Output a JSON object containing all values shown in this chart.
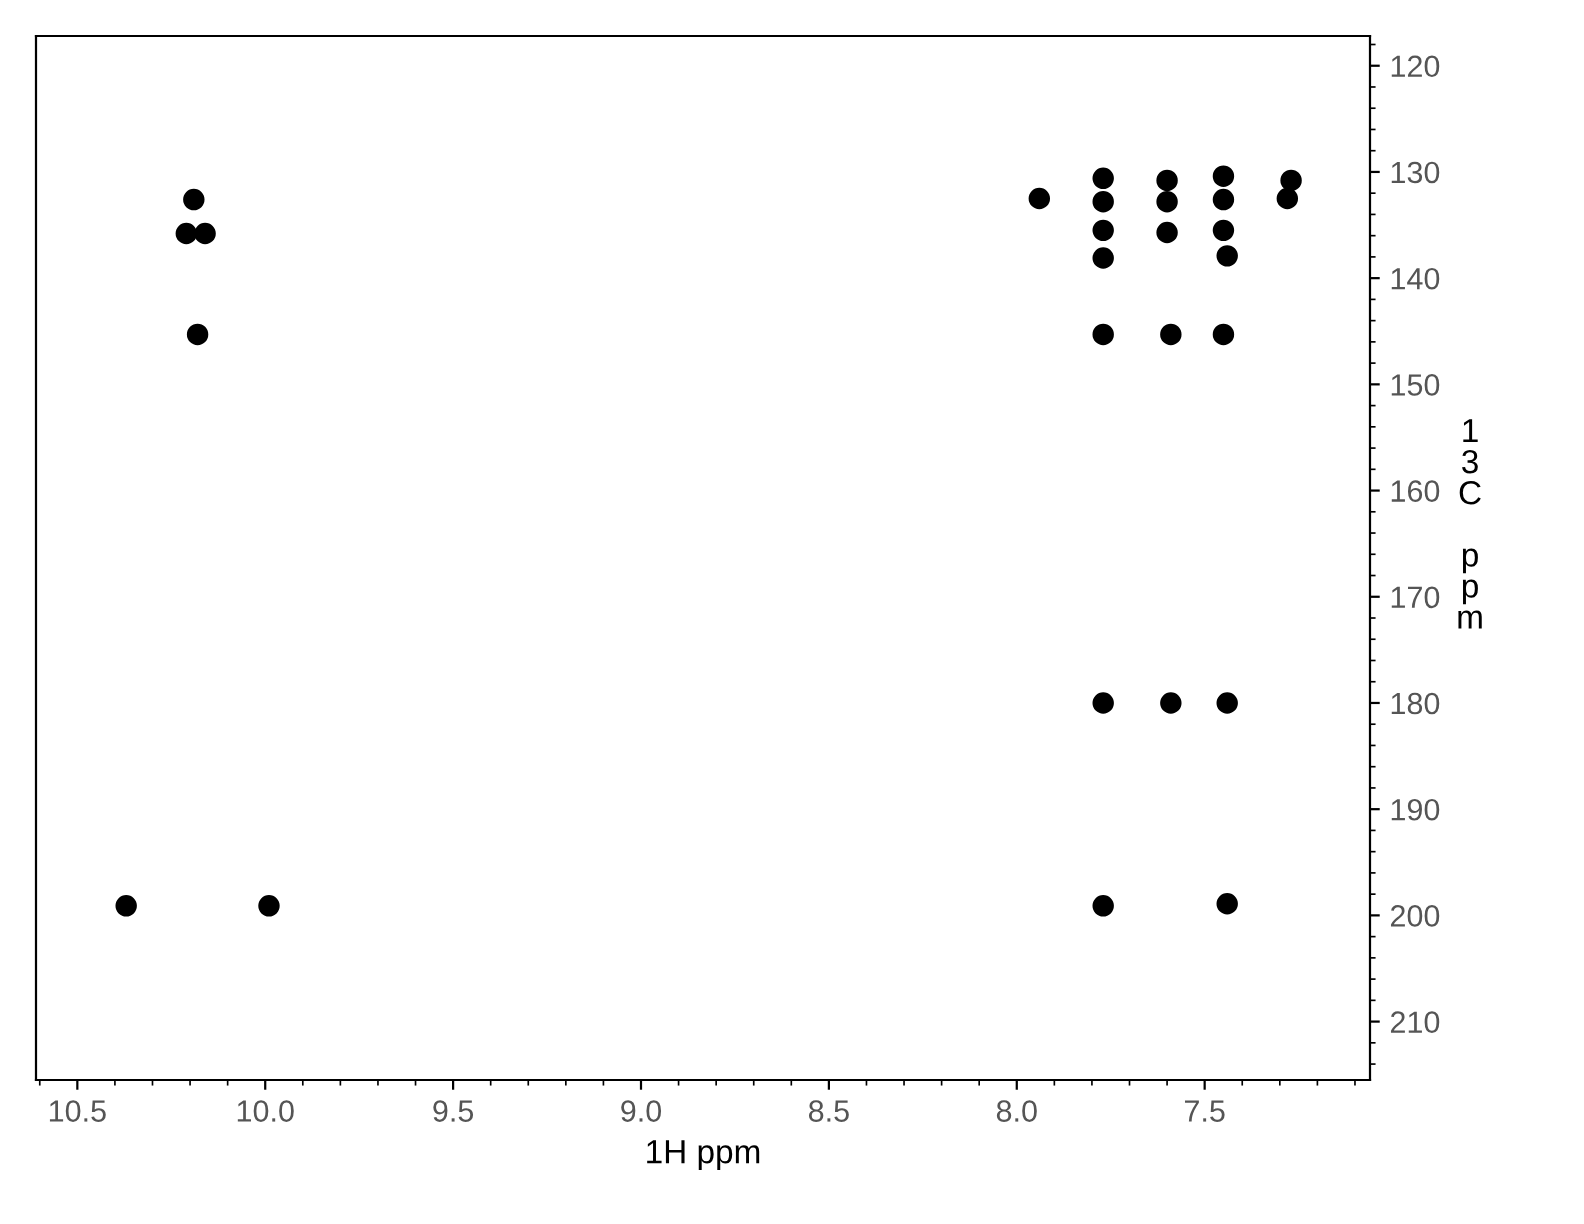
{
  "chart_data": {
    "type": "scatter",
    "xlabel": "1H ppm",
    "ylabel": "13C ppm",
    "xlim": [
      10.61,
      7.06
    ],
    "ylim": [
      215.5,
      117.2
    ],
    "xticks": [
      {
        "value": 10.5,
        "label": "10.5"
      },
      {
        "value": 10.0,
        "label": "10.0"
      },
      {
        "value": 9.5,
        "label": "9.5"
      },
      {
        "value": 9.0,
        "label": "9.0"
      },
      {
        "value": 8.5,
        "label": "8.5"
      },
      {
        "value": 8.0,
        "label": "8.0"
      },
      {
        "value": 7.5,
        "label": "7.5"
      }
    ],
    "yticks": [
      120,
      130,
      140,
      150,
      160,
      170,
      180,
      190,
      200,
      210
    ],
    "marker": "circle",
    "grid": false,
    "series": [
      {
        "color": "#000000",
        "x": [
          7.94,
          7.77,
          7.77,
          7.77,
          7.77,
          7.77,
          7.6,
          7.6,
          7.6,
          7.59,
          7.45,
          7.45,
          7.45,
          7.44,
          7.45,
          7.27,
          7.28,
          7.77,
          7.59,
          7.44,
          7.77,
          7.44,
          10.19,
          10.21,
          10.16,
          10.18,
          10.37,
          9.99
        ],
        "values": [
          132.5,
          130.6,
          132.8,
          135.5,
          138.1,
          145.3,
          130.8,
          132.8,
          135.7,
          145.3,
          130.4,
          132.6,
          135.5,
          137.9,
          145.3,
          130.8,
          132.5,
          180.0,
          180.0,
          180.0,
          199.1,
          198.9,
          132.6,
          135.8,
          135.8,
          145.3,
          199.1,
          199.1
        ]
      }
    ]
  }
}
